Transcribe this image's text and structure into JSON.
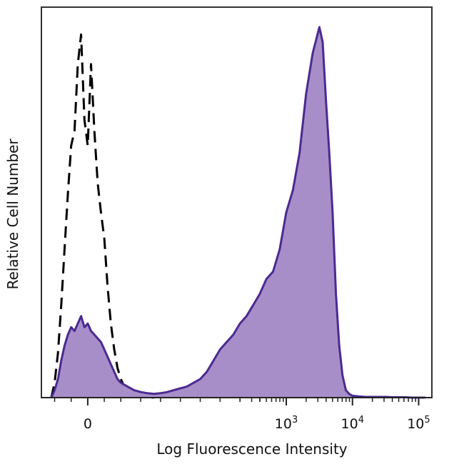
{
  "chart_data": {
    "type": "area",
    "xlabel": "Log Fluorescence Intensity",
    "ylabel": "Relative Cell Number",
    "x_scale": "biexponential",
    "xlim": [
      -0.7,
      5.2
    ],
    "ylim": [
      0,
      1.0
    ],
    "grid": false,
    "x_ticks": [
      {
        "value": 0,
        "base": "0",
        "exp": ""
      },
      {
        "value": 3,
        "base": "10",
        "exp": "3"
      },
      {
        "value": 4,
        "base": "10",
        "exp": "4"
      },
      {
        "value": 5,
        "base": "10",
        "exp": "5"
      }
    ],
    "series": [
      {
        "style": "dashed",
        "color": "#000000",
        "x": [
          -0.55,
          -0.5,
          -0.45,
          -0.4,
          -0.35,
          -0.3,
          -0.25,
          -0.2,
          -0.15,
          -0.1,
          -0.05,
          0,
          0.05,
          0.1,
          0.15,
          0.2,
          0.25,
          0.3,
          0.35,
          0.4,
          0.45,
          0.5,
          0.55,
          0.6,
          0.65,
          0.7,
          0.75,
          0.8,
          0.85,
          0.9,
          1.0
        ],
        "y": [
          0.0,
          0.04,
          0.12,
          0.25,
          0.4,
          0.55,
          0.68,
          0.72,
          0.9,
          0.98,
          0.75,
          0.68,
          0.9,
          0.72,
          0.58,
          0.5,
          0.43,
          0.3,
          0.2,
          0.13,
          0.08,
          0.05,
          0.03,
          0.02,
          0.015,
          0.01,
          0.008,
          0.005,
          0.004,
          0.002,
          0.0
        ]
      },
      {
        "style": "filled",
        "color": "#4b2a91",
        "fill": "#a88ec8",
        "x": [
          -0.55,
          -0.5,
          -0.45,
          -0.4,
          -0.35,
          -0.3,
          -0.25,
          -0.2,
          -0.15,
          -0.1,
          -0.05,
          0,
          0.05,
          0.1,
          0.15,
          0.2,
          0.25,
          0.3,
          0.35,
          0.4,
          0.45,
          0.5,
          0.6,
          0.7,
          0.8,
          0.9,
          1.0,
          1.1,
          1.2,
          1.3,
          1.4,
          1.5,
          1.6,
          1.7,
          1.8,
          1.9,
          2.0,
          2.1,
          2.2,
          2.3,
          2.4,
          2.5,
          2.6,
          2.7,
          2.8,
          2.9,
          3.0,
          3.1,
          3.2,
          3.3,
          3.4,
          3.5,
          3.55,
          3.6,
          3.65,
          3.7,
          3.75,
          3.8,
          3.85,
          3.9,
          3.95,
          4.0,
          4.1,
          4.2,
          4.3,
          4.4,
          4.5,
          4.6,
          4.7,
          4.8,
          4.9,
          5.0,
          5.1
        ],
        "y": [
          0.0,
          0.02,
          0.05,
          0.1,
          0.14,
          0.17,
          0.19,
          0.18,
          0.2,
          0.22,
          0.19,
          0.2,
          0.18,
          0.17,
          0.16,
          0.15,
          0.13,
          0.11,
          0.09,
          0.07,
          0.05,
          0.04,
          0.03,
          0.02,
          0.015,
          0.012,
          0.01,
          0.012,
          0.015,
          0.02,
          0.025,
          0.03,
          0.04,
          0.05,
          0.07,
          0.1,
          0.13,
          0.15,
          0.17,
          0.2,
          0.22,
          0.25,
          0.28,
          0.32,
          0.34,
          0.4,
          0.5,
          0.56,
          0.66,
          0.82,
          0.93,
          1.0,
          0.96,
          0.8,
          0.66,
          0.5,
          0.28,
          0.14,
          0.06,
          0.02,
          0.01,
          0.005,
          0.003,
          0.002,
          0.002,
          0.002,
          0.002,
          0.001,
          0.001,
          0.001,
          0.0,
          0.0,
          0.0
        ]
      }
    ]
  }
}
